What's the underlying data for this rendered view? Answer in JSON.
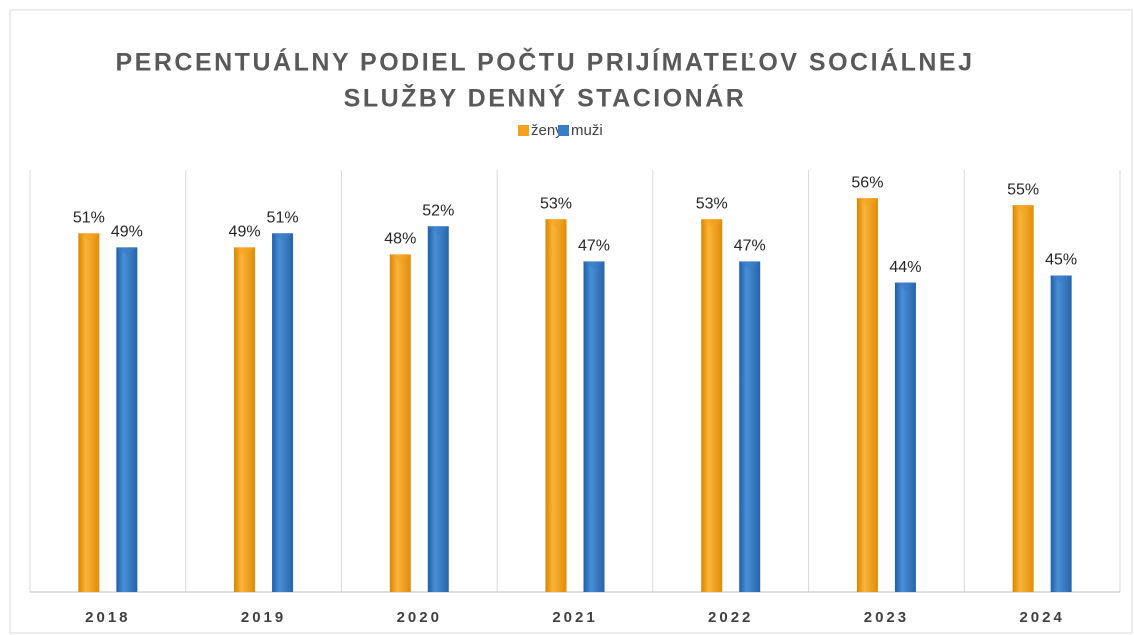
{
  "chart_data": {
    "type": "bar",
    "title": [
      "PERCENTUÁLNY PODIEL POČTU PRIJÍMATEĽOV SOCIÁLNEJ",
      "SLUŽBY DENNÝ STACIONÁR"
    ],
    "categories": [
      "2018",
      "2019",
      "2020",
      "2021",
      "2022",
      "2023",
      "2024"
    ],
    "series": [
      {
        "name": "ženy",
        "color": "#f4a21e",
        "values": [
          51,
          49,
          48,
          53,
          53,
          56,
          55
        ],
        "value_labels": [
          "51%",
          "49%",
          "48%",
          "53%",
          "53%",
          "56%",
          "55%"
        ]
      },
      {
        "name": "muži",
        "color": "#3a7cc6",
        "values": [
          49,
          51,
          52,
          47,
          47,
          44,
          45
        ],
        "value_labels": [
          "49%",
          "51%",
          "52%",
          "47%",
          "47%",
          "44%",
          "45%"
        ]
      }
    ],
    "ylim": [
      0,
      60
    ],
    "legend": "top"
  }
}
